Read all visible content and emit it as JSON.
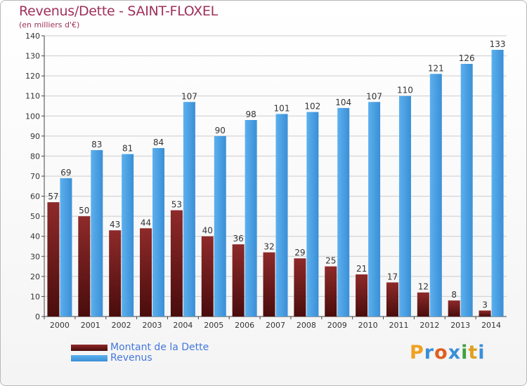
{
  "header": {
    "title": "Revenus/Dette - SAINT-FLOXEL",
    "subtitle": "(en milliers d'€)"
  },
  "legend": {
    "debt_label": "Montant de la Dette",
    "revenue_label": "Revenus"
  },
  "logo": {
    "letters": [
      "P",
      "r",
      "o",
      "x",
      "i",
      "t",
      "i"
    ],
    "colors": [
      "#f0a020",
      "#3a8fd8",
      "#e06020",
      "#3a8fd8",
      "#40a040",
      "#e0a020",
      "#3a8fd8"
    ]
  },
  "colors": {
    "debt": "#7a1f1f",
    "debt_light": "#9a3a3a",
    "revenue": "#4da3e6",
    "revenue_dark": "#2f86cc",
    "axis_text": "#333333",
    "grid": "#cccccc"
  },
  "chart_data": {
    "type": "bar",
    "categories": [
      "2000",
      "2001",
      "2002",
      "2003",
      "2004",
      "2005",
      "2006",
      "2007",
      "2008",
      "2009",
      "2010",
      "2011",
      "2012",
      "2013",
      "2014"
    ],
    "series": [
      {
        "name": "Montant de la Dette",
        "values": [
          57,
          50,
          43,
          44,
          53,
          40,
          36,
          32,
          29,
          25,
          21,
          17,
          12,
          8,
          3
        ]
      },
      {
        "name": "Revenus",
        "values": [
          69,
          83,
          81,
          84,
          107,
          90,
          98,
          101,
          102,
          104,
          107,
          110,
          121,
          126,
          133
        ]
      }
    ],
    "ylim": [
      0,
      140
    ],
    "yticks": [
      0,
      10,
      20,
      30,
      40,
      50,
      60,
      70,
      80,
      90,
      100,
      110,
      120,
      130,
      140
    ],
    "grid": true,
    "legend_position": "bottom-left"
  }
}
